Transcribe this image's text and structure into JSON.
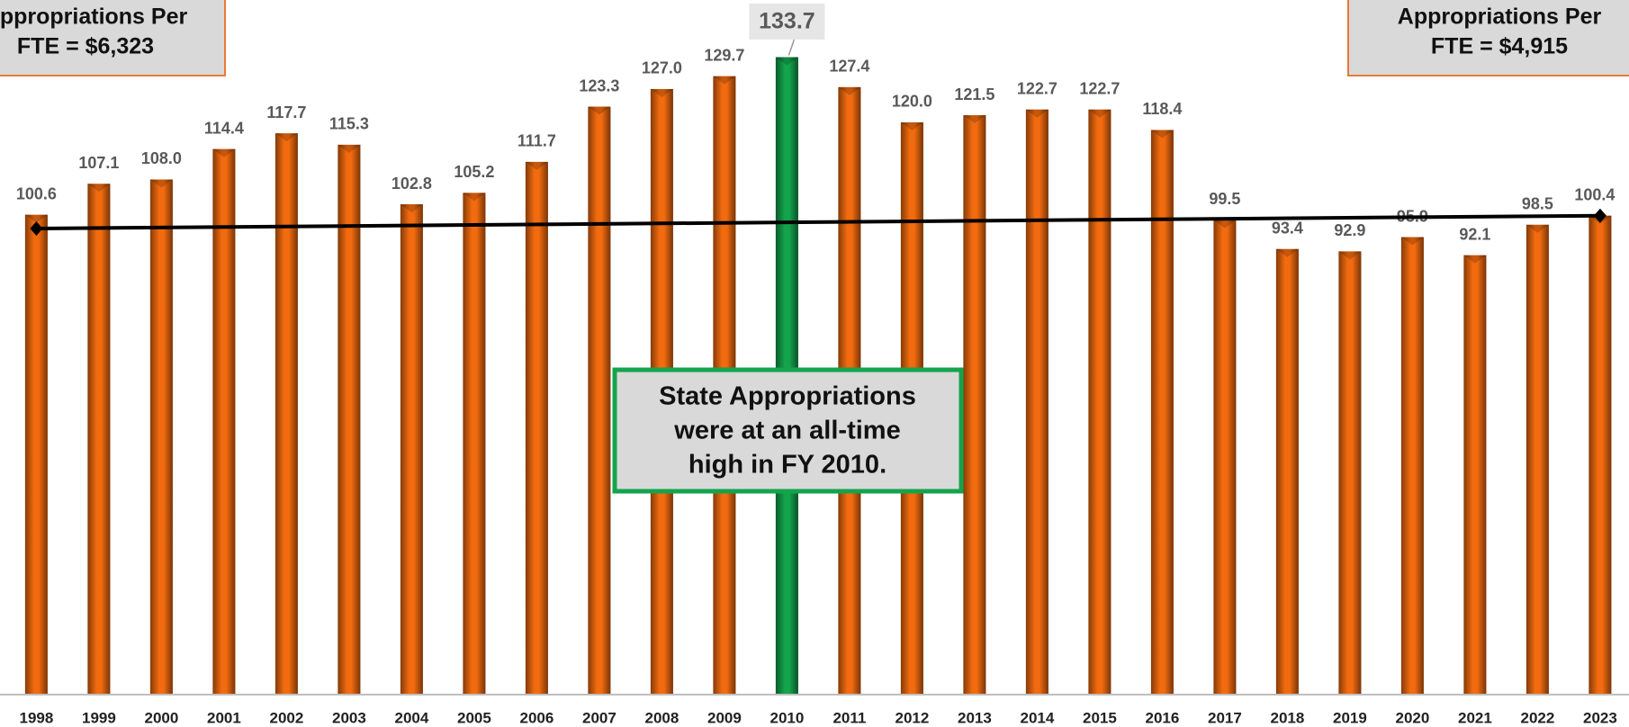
{
  "chart_data": {
    "type": "bar",
    "categories": [
      "1998",
      "1999",
      "2000",
      "2001",
      "2002",
      "2003",
      "2004",
      "2005",
      "2006",
      "2007",
      "2008",
      "2009",
      "2010",
      "2011",
      "2012",
      "2013",
      "2014",
      "2015",
      "2016",
      "2017",
      "2018",
      "2019",
      "2020",
      "2021",
      "2022",
      "2023"
    ],
    "values": [
      100.6,
      107.1,
      108.0,
      114.4,
      117.7,
      115.3,
      102.8,
      105.2,
      111.7,
      123.3,
      127.0,
      129.7,
      133.7,
      127.4,
      120.0,
      121.5,
      122.7,
      122.7,
      118.4,
      99.5,
      93.4,
      92.9,
      95.9,
      92.1,
      98.5,
      100.4
    ],
    "value_labels": [
      "100.6",
      "107.1",
      "108.0",
      "114.4",
      "117.7",
      "115.3",
      "102.8",
      "105.2",
      "111.7",
      "123.3",
      "127.0",
      "129.7",
      "133.7",
      "127.4",
      "120.0",
      "121.5",
      "122.7",
      "122.7",
      "118.4",
      "99.5",
      "93.4",
      "92.9",
      "95.9",
      "92.1",
      "98.5",
      "100.4"
    ],
    "colors": [
      "#f26b0f",
      "#f26b0f",
      "#f26b0f",
      "#f26b0f",
      "#f26b0f",
      "#f26b0f",
      "#f26b0f",
      "#f26b0f",
      "#f26b0f",
      "#f26b0f",
      "#f26b0f",
      "#f26b0f",
      "#14a44d",
      "#f26b0f",
      "#f26b0f",
      "#f26b0f",
      "#f26b0f",
      "#f26b0f",
      "#f26b0f",
      "#f26b0f",
      "#f26b0f",
      "#f26b0f",
      "#f26b0f",
      "#f26b0f",
      "#f26b0f",
      "#f26b0f"
    ],
    "ylim": [
      0,
      145.7
    ],
    "trendline": {
      "values": [
        97.7,
        100.4
      ],
      "color": "#000000"
    },
    "annotations": {
      "left": [
        "Appropriations Per",
        "FTE = $6,323"
      ],
      "right": [
        "Appropriations Per",
        "FTE = $4,915"
      ],
      "center": [
        "State Appropriations",
        "were at an all-time",
        "high in FY 2010."
      ]
    }
  }
}
